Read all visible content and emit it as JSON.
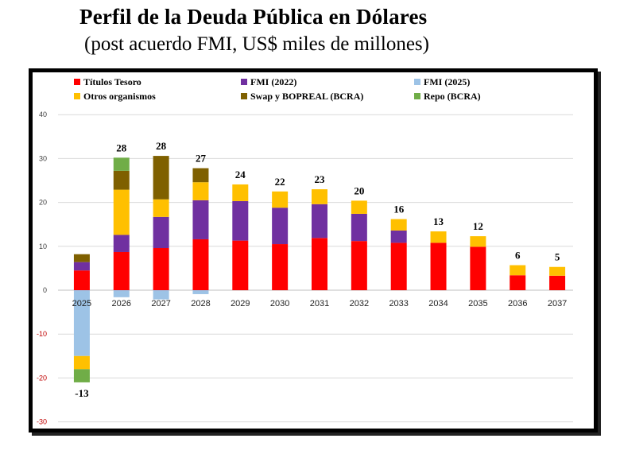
{
  "page": {
    "title": "Perfil de la Deuda Pública en Dólares",
    "subtitle": "(post acuerdo FMI, US$ miles de millones)"
  },
  "chart_data": {
    "type": "bar",
    "stacked": true,
    "title": "Perfil de la Deuda Pública en Dólares",
    "subtitle": "(post acuerdo FMI, US$ miles de millones)",
    "xlabel": "",
    "ylabel": "",
    "ylim": [
      -30,
      40
    ],
    "yticks": [
      40,
      30,
      20,
      10,
      0,
      -10,
      -20,
      -30
    ],
    "grid": true,
    "legend_position": "top",
    "categories": [
      "2025",
      "2026",
      "2027",
      "2028",
      "2029",
      "2030",
      "2031",
      "2032",
      "2033",
      "2034",
      "2035",
      "2036",
      "2037"
    ],
    "series": [
      {
        "name": "Títulos Tesoro",
        "color": "#ff0000",
        "values": [
          4.5,
          8.7,
          9.6,
          11.6,
          11.3,
          10.5,
          11.9,
          11.2,
          10.8,
          10.8,
          9.9,
          3.4,
          3.3
        ]
      },
      {
        "name": "FMI (2022)",
        "color": "#7030a0",
        "values": [
          1.9,
          3.9,
          7.1,
          8.9,
          9.0,
          8.3,
          7.7,
          6.2,
          2.8,
          0,
          0,
          0,
          0
        ]
      },
      {
        "name": "FMI (2025)",
        "color": "#9dc3e6",
        "values": [
          -15.0,
          -1.6,
          -2.1,
          -0.9,
          0,
          0,
          0,
          0,
          0,
          0,
          0,
          0,
          0
        ]
      },
      {
        "name": "Otros organismos",
        "color": "#ffc000",
        "values": [
          -3.0,
          10.3,
          4.0,
          4.1,
          3.8,
          3.7,
          3.4,
          3.0,
          2.6,
          2.6,
          2.4,
          2.3,
          2.0
        ]
      },
      {
        "name": "Swap y BOPREAL (BCRA)",
        "color": "#7f6000",
        "values": [
          1.8,
          4.3,
          9.9,
          3.2,
          0,
          0,
          0,
          0,
          0,
          0,
          0,
          0,
          0
        ]
      },
      {
        "name": "Repo (BCRA)",
        "color": "#70ad47",
        "values": [
          -3.0,
          3.0,
          0,
          0,
          0,
          0,
          0,
          0,
          0,
          0,
          0,
          0,
          0
        ]
      }
    ],
    "totals": [
      "-13",
      "28",
      "28",
      "27",
      "24",
      "22",
      "23",
      "20",
      "16",
      "13",
      "12",
      "6",
      "5"
    ]
  }
}
